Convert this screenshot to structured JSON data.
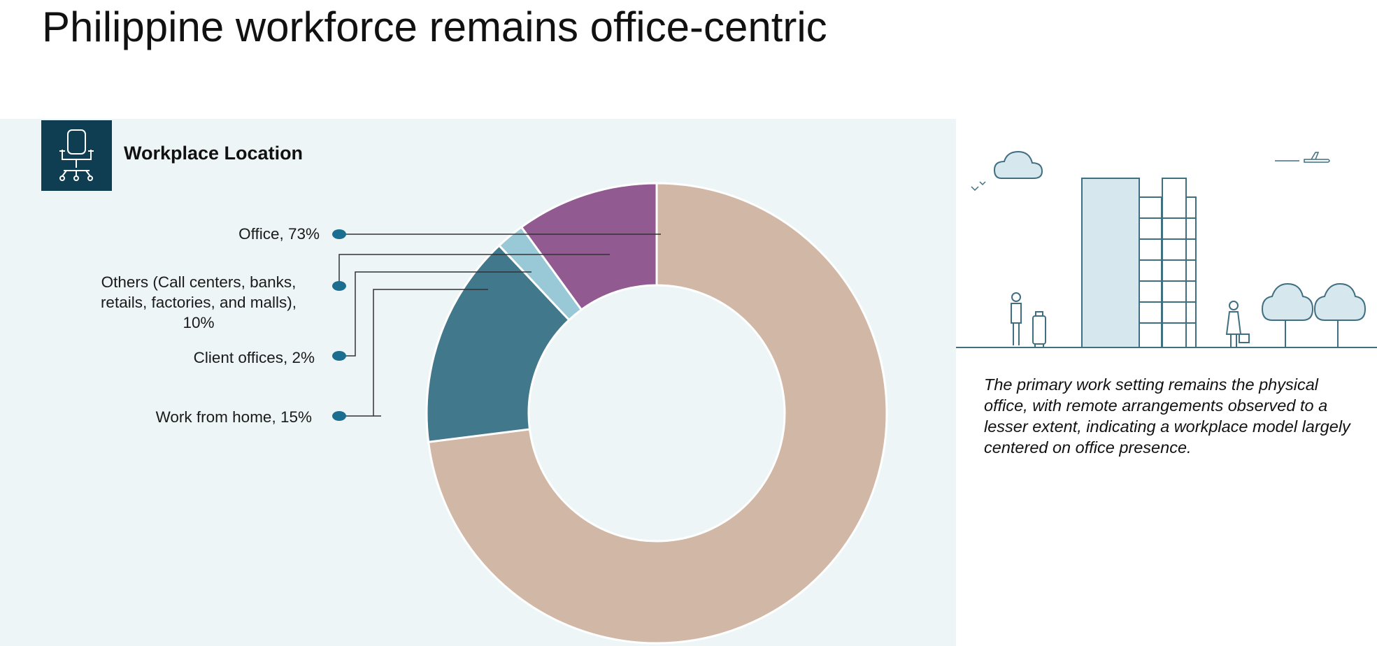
{
  "page_title": "Philippine workforce remains office-centric",
  "panel": {
    "title": "Workplace Location",
    "icon": "office-chair-icon"
  },
  "chart_data": {
    "type": "pie",
    "style": "donut",
    "title": "Workplace Location",
    "slices": [
      {
        "label": "Office",
        "value": 73,
        "display": "Office, 73%",
        "color": "#d1b7a6"
      },
      {
        "label": "Work from home",
        "value": 15,
        "display": "Work from home, 15%",
        "color": "#41788c"
      },
      {
        "label": "Client offices",
        "value": 2,
        "display": "Client offices, 2%",
        "color": "#99c8d6"
      },
      {
        "label": "Others (Call centers, banks, retails, factories, and malls)",
        "value": 10,
        "display_lines": [
          "Others (Call centers, banks,",
          "retails, factories, and malls),",
          "10%"
        ],
        "color": "#915a90"
      }
    ],
    "legend": "callout-left"
  },
  "summary": "The primary work setting remains the physical office, with remote arrangements observed to a lesser extent, indicating a workplace model largely centered on office presence.",
  "colors": {
    "panel_bg": "#eef5f7",
    "icon_bg": "#0f3d52",
    "marker": "#1c6e90",
    "illustration_line": "#3f6f80",
    "illustration_fill": "#d6e8ee"
  }
}
